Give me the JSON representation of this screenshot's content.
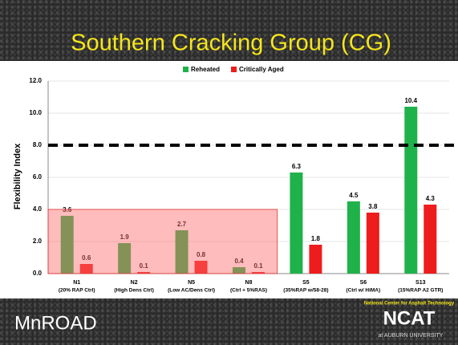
{
  "chart_data": {
    "type": "bar",
    "title": "Southern Cracking Group (CG)",
    "y_label": "Flexibility Index",
    "categories": [
      "N1",
      "N2",
      "N5",
      "N8",
      "S5",
      "S6",
      "S13"
    ],
    "category_details": [
      "(20% RAP Ctrl)",
      "(High Dens Ctrl)",
      "(Low AC/Dens Ctrl)",
      "(Ctrl + 5%RAS)",
      "(35%RAP w/58-28)",
      "(Ctrl w/ HiMA)",
      "(15%RAP A2 GTR)"
    ],
    "series": [
      {
        "name": "Reheated",
        "color": "#1fb24a",
        "values": [
          3.6,
          1.9,
          2.7,
          0.4,
          6.3,
          4.5,
          10.4
        ]
      },
      {
        "name": "Critically Aged",
        "color": "#ee1c1c",
        "values": [
          0.6,
          0.1,
          0.8,
          0.1,
          1.8,
          3.8,
          4.3
        ]
      }
    ],
    "ylim": [
      0,
      12
    ],
    "yticks": [
      {
        "value": 0,
        "label": "0.0"
      },
      {
        "value": 2,
        "label": "2.0"
      },
      {
        "value": 4,
        "label": "4.0"
      },
      {
        "value": 6,
        "label": "6.0"
      },
      {
        "value": 8,
        "label": "8.0"
      },
      {
        "value": 10,
        "label": "10.0"
      },
      {
        "value": 12,
        "label": "12.0"
      }
    ],
    "grid": true,
    "legend": "top",
    "threshold": 8,
    "shaded_region": {
      "categories": [
        "N1",
        "N2",
        "N5",
        "N8"
      ],
      "ylim": [
        0,
        4
      ],
      "color": "#ff6b6b"
    }
  },
  "logos": {
    "left": "MnROAD",
    "right_top": "National Center for Asphalt Technology",
    "right_main": "NCAT",
    "right_bottom": "at AUBURN UNIVERSITY"
  }
}
